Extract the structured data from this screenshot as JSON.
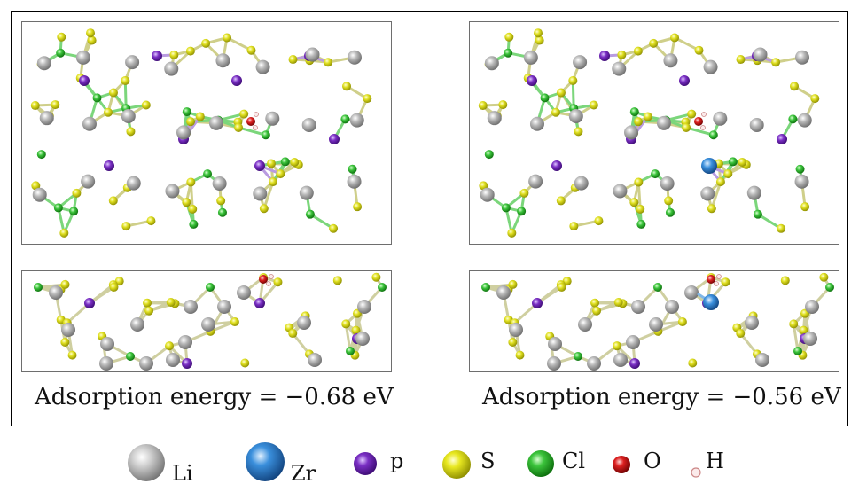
{
  "panels": [
    {
      "id": "pure",
      "energy_text": "Adsorption energy = −0.68 eV",
      "dopant": false
    },
    {
      "id": "zr-doped",
      "energy_text": "Adsorption energy = −0.56 eV",
      "dopant": true
    }
  ],
  "legend": [
    {
      "label": "Li",
      "color": "#b8b8b8"
    },
    {
      "label": "Zr",
      "color": "#3a8fdc"
    },
    {
      "label": "p",
      "color": "#7a2fc4"
    },
    {
      "label": "S",
      "color": "#e0e020"
    },
    {
      "label": "Cl",
      "color": "#3cc43c"
    },
    {
      "label": "O",
      "color": "#dd2020"
    },
    {
      "label": "H",
      "color": "#f2c8c8"
    }
  ],
  "colors": {
    "li": "#b8b8b8",
    "zr": "#3a8fdc",
    "p": "#7a2fc4",
    "s": "#e0e020",
    "cl": "#3cc43c",
    "o": "#dd2020",
    "h": "#f2c8c8"
  }
}
